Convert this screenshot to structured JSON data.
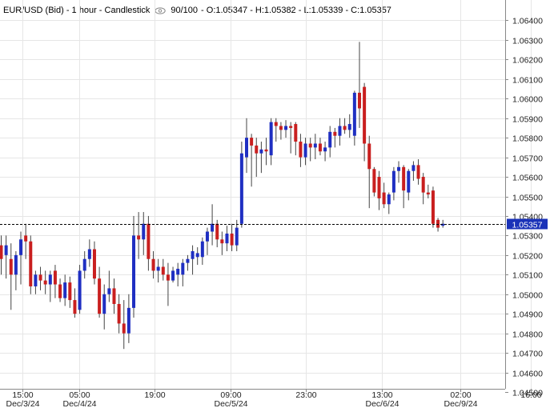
{
  "header": {
    "symbol": "EUR/USD (Bid) - 1 hour - Candlestick",
    "bars": "90/100",
    "ohlc": "- O:1.05347 - H:1.05382 - L:1.05339 - C:1.05357"
  },
  "colors": {
    "up": "#1f2fc2",
    "down": "#c91f1f",
    "wick": "#444444",
    "grid": "#e6e6e6",
    "axis": "#888888",
    "price_label_bg": "#1a32b8",
    "price_label_text": "#ffffff"
  },
  "icons": {
    "visibility": "eye-icon"
  },
  "chart_data": {
    "type": "candlestick",
    "title": "EUR/USD (Bid) - 1 hour - Candlestick",
    "grid": true,
    "price_axis": "right",
    "ylim": [
      1.045,
      1.065
    ],
    "y_ticks": [
      "1.04500",
      "1.04600",
      "1.04700",
      "1.04800",
      "1.04900",
      "1.05000",
      "1.05100",
      "1.05200",
      "1.05300",
      "1.05400",
      "1.05500",
      "1.05600",
      "1.05700",
      "1.05800",
      "1.05900",
      "1.06000",
      "1.06100",
      "1.06200",
      "1.06300",
      "1.06400"
    ],
    "x_ticks": [
      {
        "index": 4.4,
        "time": "15:00",
        "date": "Dec/3/24"
      },
      {
        "index": 15.9,
        "time": "05:00",
        "date": "Dec/4/24"
      },
      {
        "index": 31.3,
        "time": "19:00",
        "date": ""
      },
      {
        "index": 46.7,
        "time": "09:00",
        "date": "Dec/5/24"
      },
      {
        "index": 62.1,
        "time": "23:00",
        "date": ""
      },
      {
        "index": 77.5,
        "time": "13:00",
        "date": "Dec/6/24"
      },
      {
        "index": 93.6,
        "time": "02:00",
        "date": "Dec/9/24"
      },
      {
        "index": 107.9,
        "time": "16:00",
        "date": ""
      }
    ],
    "current_price": "1.05357",
    "current_value": 1.05357,
    "candles": [
      {
        "o": 1.0525,
        "h": 1.053,
        "l": 1.051,
        "c": 1.0518
      },
      {
        "o": 1.052,
        "h": 1.053,
        "l": 1.0508,
        "c": 1.0525
      },
      {
        "o": 1.0518,
        "h": 1.0526,
        "l": 1.0492,
        "c": 1.051
      },
      {
        "o": 1.051,
        "h": 1.0522,
        "l": 1.0502,
        "c": 1.052
      },
      {
        "o": 1.052,
        "h": 1.0532,
        "l": 1.0505,
        "c": 1.0528
      },
      {
        "o": 1.053,
        "h": 1.0536,
        "l": 1.0518,
        "c": 1.0527
      },
      {
        "o": 1.0527,
        "h": 1.053,
        "l": 1.05,
        "c": 1.0504
      },
      {
        "o": 1.0504,
        "h": 1.0512,
        "l": 1.05,
        "c": 1.051
      },
      {
        "o": 1.051,
        "h": 1.0514,
        "l": 1.0502,
        "c": 1.0507
      },
      {
        "o": 1.0507,
        "h": 1.0512,
        "l": 1.05,
        "c": 1.0505
      },
      {
        "o": 1.0505,
        "h": 1.0512,
        "l": 1.0496,
        "c": 1.051
      },
      {
        "o": 1.0512,
        "h": 1.0515,
        "l": 1.0498,
        "c": 1.0505
      },
      {
        "o": 1.0505,
        "h": 1.0508,
        "l": 1.0496,
        "c": 1.0498
      },
      {
        "o": 1.0498,
        "h": 1.051,
        "l": 1.0494,
        "c": 1.0506
      },
      {
        "o": 1.0506,
        "h": 1.0509,
        "l": 1.0493,
        "c": 1.0497
      },
      {
        "o": 1.0497,
        "h": 1.0503,
        "l": 1.0488,
        "c": 1.049
      },
      {
        "o": 1.0492,
        "h": 1.0515,
        "l": 1.049,
        "c": 1.0512
      },
      {
        "o": 1.0512,
        "h": 1.0522,
        "l": 1.0508,
        "c": 1.0518
      },
      {
        "o": 1.0518,
        "h": 1.0528,
        "l": 1.0514,
        "c": 1.0523
      },
      {
        "o": 1.0523,
        "h": 1.0527,
        "l": 1.0505,
        "c": 1.0508
      },
      {
        "o": 1.0508,
        "h": 1.0514,
        "l": 1.0488,
        "c": 1.049
      },
      {
        "o": 1.049,
        "h": 1.0505,
        "l": 1.0482,
        "c": 1.05
      },
      {
        "o": 1.05,
        "h": 1.0512,
        "l": 1.0496,
        "c": 1.0503
      },
      {
        "o": 1.0503,
        "h": 1.0508,
        "l": 1.049,
        "c": 1.0495
      },
      {
        "o": 1.0495,
        "h": 1.05,
        "l": 1.048,
        "c": 1.0485
      },
      {
        "o": 1.0485,
        "h": 1.0497,
        "l": 1.0472,
        "c": 1.048
      },
      {
        "o": 1.048,
        "h": 1.05,
        "l": 1.0475,
        "c": 1.0493
      },
      {
        "o": 1.0493,
        "h": 1.054,
        "l": 1.0488,
        "c": 1.053
      },
      {
        "o": 1.053,
        "h": 1.0542,
        "l": 1.0518,
        "c": 1.0528
      },
      {
        "o": 1.0528,
        "h": 1.0542,
        "l": 1.052,
        "c": 1.0536
      },
      {
        "o": 1.0536,
        "h": 1.054,
        "l": 1.0512,
        "c": 1.0518
      },
      {
        "o": 1.0518,
        "h": 1.0522,
        "l": 1.0508,
        "c": 1.0512
      },
      {
        "o": 1.0512,
        "h": 1.0518,
        "l": 1.0506,
        "c": 1.0514
      },
      {
        "o": 1.0514,
        "h": 1.0518,
        "l": 1.0507,
        "c": 1.051
      },
      {
        "o": 1.051,
        "h": 1.0516,
        "l": 1.0494,
        "c": 1.0507
      },
      {
        "o": 1.0507,
        "h": 1.0514,
        "l": 1.0506,
        "c": 1.0512
      },
      {
        "o": 1.051,
        "h": 1.0516,
        "l": 1.0504,
        "c": 1.0513
      },
      {
        "o": 1.051,
        "h": 1.0518,
        "l": 1.0504,
        "c": 1.0516
      },
      {
        "o": 1.0516,
        "h": 1.052,
        "l": 1.0512,
        "c": 1.0518
      },
      {
        "o": 1.0518,
        "h": 1.0525,
        "l": 1.051,
        "c": 1.0522
      },
      {
        "o": 1.0519,
        "h": 1.0524,
        "l": 1.0515,
        "c": 1.0521
      },
      {
        "o": 1.0519,
        "h": 1.0529,
        "l": 1.0515,
        "c": 1.0527
      },
      {
        "o": 1.0527,
        "h": 1.0534,
        "l": 1.052,
        "c": 1.0532
      },
      {
        "o": 1.0532,
        "h": 1.0546,
        "l": 1.0525,
        "c": 1.0536
      },
      {
        "o": 1.0536,
        "h": 1.0538,
        "l": 1.0524,
        "c": 1.0528
      },
      {
        "o": 1.0528,
        "h": 1.0532,
        "l": 1.052,
        "c": 1.0526
      },
      {
        "o": 1.0526,
        "h": 1.0535,
        "l": 1.0522,
        "c": 1.0531
      },
      {
        "o": 1.0531,
        "h": 1.0536,
        "l": 1.0522,
        "c": 1.0525
      },
      {
        "o": 1.0525,
        "h": 1.0538,
        "l": 1.0522,
        "c": 1.0534
      },
      {
        "o": 1.0536,
        "h": 1.0578,
        "l": 1.0534,
        "c": 1.0572
      },
      {
        "o": 1.057,
        "h": 1.059,
        "l": 1.0562,
        "c": 1.058
      },
      {
        "o": 1.058,
        "h": 1.0582,
        "l": 1.0555,
        "c": 1.0576
      },
      {
        "o": 1.0576,
        "h": 1.058,
        "l": 1.056,
        "c": 1.0572
      },
      {
        "o": 1.0572,
        "h": 1.0578,
        "l": 1.0562,
        "c": 1.0574
      },
      {
        "o": 1.0574,
        "h": 1.058,
        "l": 1.0566,
        "c": 1.0573
      },
      {
        "o": 1.0571,
        "h": 1.059,
        "l": 1.0566,
        "c": 1.0588
      },
      {
        "o": 1.0588,
        "h": 1.059,
        "l": 1.0578,
        "c": 1.0586
      },
      {
        "o": 1.0586,
        "h": 1.0588,
        "l": 1.0579,
        "c": 1.0584
      },
      {
        "o": 1.0584,
        "h": 1.0589,
        "l": 1.058,
        "c": 1.0586
      },
      {
        "o": 1.0586,
        "h": 1.0588,
        "l": 1.0572,
        "c": 1.0585
      },
      {
        "o": 1.0587,
        "h": 1.0588,
        "l": 1.0571,
        "c": 1.0578
      },
      {
        "o": 1.0578,
        "h": 1.0582,
        "l": 1.0565,
        "c": 1.057
      },
      {
        "o": 1.057,
        "h": 1.058,
        "l": 1.0566,
        "c": 1.0577
      },
      {
        "o": 1.0577,
        "h": 1.058,
        "l": 1.0568,
        "c": 1.0575
      },
      {
        "o": 1.0575,
        "h": 1.0582,
        "l": 1.0569,
        "c": 1.0577
      },
      {
        "o": 1.0577,
        "h": 1.058,
        "l": 1.0571,
        "c": 1.0573
      },
      {
        "o": 1.0573,
        "h": 1.0578,
        "l": 1.0568,
        "c": 1.0575
      },
      {
        "o": 1.0575,
        "h": 1.0586,
        "l": 1.057,
        "c": 1.0583
      },
      {
        "o": 1.0583,
        "h": 1.0585,
        "l": 1.0575,
        "c": 1.0581
      },
      {
        "o": 1.0581,
        "h": 1.059,
        "l": 1.0576,
        "c": 1.0586
      },
      {
        "o": 1.0586,
        "h": 1.059,
        "l": 1.0582,
        "c": 1.0584
      },
      {
        "o": 1.0584,
        "h": 1.0592,
        "l": 1.058,
        "c": 1.0587
      },
      {
        "o": 1.0581,
        "h": 1.0604,
        "l": 1.0576,
        "c": 1.0603
      },
      {
        "o": 1.0603,
        "h": 1.0629,
        "l": 1.0585,
        "c": 1.0595
      },
      {
        "o": 1.0606,
        "h": 1.0608,
        "l": 1.0568,
        "c": 1.0577
      },
      {
        "o": 1.0577,
        "h": 1.0581,
        "l": 1.0544,
        "c": 1.0564
      },
      {
        "o": 1.0564,
        "h": 1.0565,
        "l": 1.055,
        "c": 1.0552
      },
      {
        "o": 1.056,
        "h": 1.0563,
        "l": 1.0543,
        "c": 1.0549
      },
      {
        "o": 1.0552,
        "h": 1.0557,
        "l": 1.0544,
        "c": 1.0546
      },
      {
        "o": 1.0546,
        "h": 1.0552,
        "l": 1.0541,
        "c": 1.0551
      },
      {
        "o": 1.0552,
        "h": 1.0565,
        "l": 1.0548,
        "c": 1.0563
      },
      {
        "o": 1.0563,
        "h": 1.0568,
        "l": 1.0557,
        "c": 1.0565
      },
      {
        "o": 1.0565,
        "h": 1.0566,
        "l": 1.0544,
        "c": 1.0553
      },
      {
        "o": 1.0552,
        "h": 1.0564,
        "l": 1.0548,
        "c": 1.0563
      },
      {
        "o": 1.0563,
        "h": 1.0568,
        "l": 1.0558,
        "c": 1.0566
      },
      {
        "o": 1.0566,
        "h": 1.0569,
        "l": 1.0556,
        "c": 1.0559
      },
      {
        "o": 1.056,
        "h": 1.0562,
        "l": 1.0546,
        "c": 1.0552
      },
      {
        "o": 1.0552,
        "h": 1.0556,
        "l": 1.0549,
        "c": 1.0551
      },
      {
        "o": 1.0553,
        "h": 1.0555,
        "l": 1.0534,
        "c": 1.0536
      },
      {
        "o": 1.0538,
        "h": 1.0539,
        "l": 1.0532,
        "c": 1.0534
      },
      {
        "o": 1.0535,
        "h": 1.0538,
        "l": 1.0534,
        "c": 1.0536
      }
    ]
  }
}
